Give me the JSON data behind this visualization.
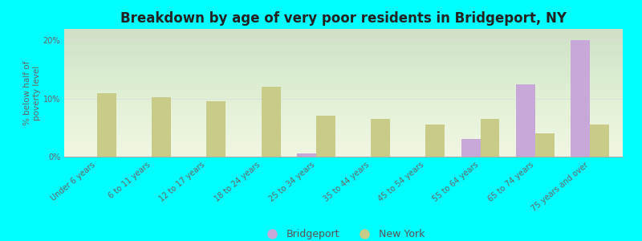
{
  "title": "Breakdown by age of very poor residents in Bridgeport, NY",
  "ylabel": "% below half of\npoverty level",
  "background_color": "#00FFFF",
  "plot_bg_color": "#eef5e0",
  "categories": [
    "Under 6 years",
    "6 to 11 years",
    "12 to 17 years",
    "18 to 24 years",
    "25 to 34 years",
    "35 to 44 years",
    "45 to 54 years",
    "55 to 64 years",
    "65 to 74 years",
    "75 years and over"
  ],
  "bridgeport_values": [
    0,
    0,
    0,
    0,
    0.5,
    0,
    0,
    3.0,
    12.5,
    20.0
  ],
  "newyork_values": [
    11.0,
    10.2,
    9.5,
    12.0,
    7.0,
    6.5,
    5.5,
    6.5,
    4.0,
    5.5
  ],
  "bridgeport_color": "#c8a8d8",
  "newyork_color": "#c8cc88",
  "ylim": [
    0,
    22
  ],
  "yticks": [
    0,
    10,
    20
  ],
  "ytick_labels": [
    "0%",
    "10%",
    "20%"
  ],
  "bar_width": 0.35,
  "title_fontsize": 12,
  "label_fontsize": 7.5,
  "tick_fontsize": 7,
  "legend_fontsize": 9
}
